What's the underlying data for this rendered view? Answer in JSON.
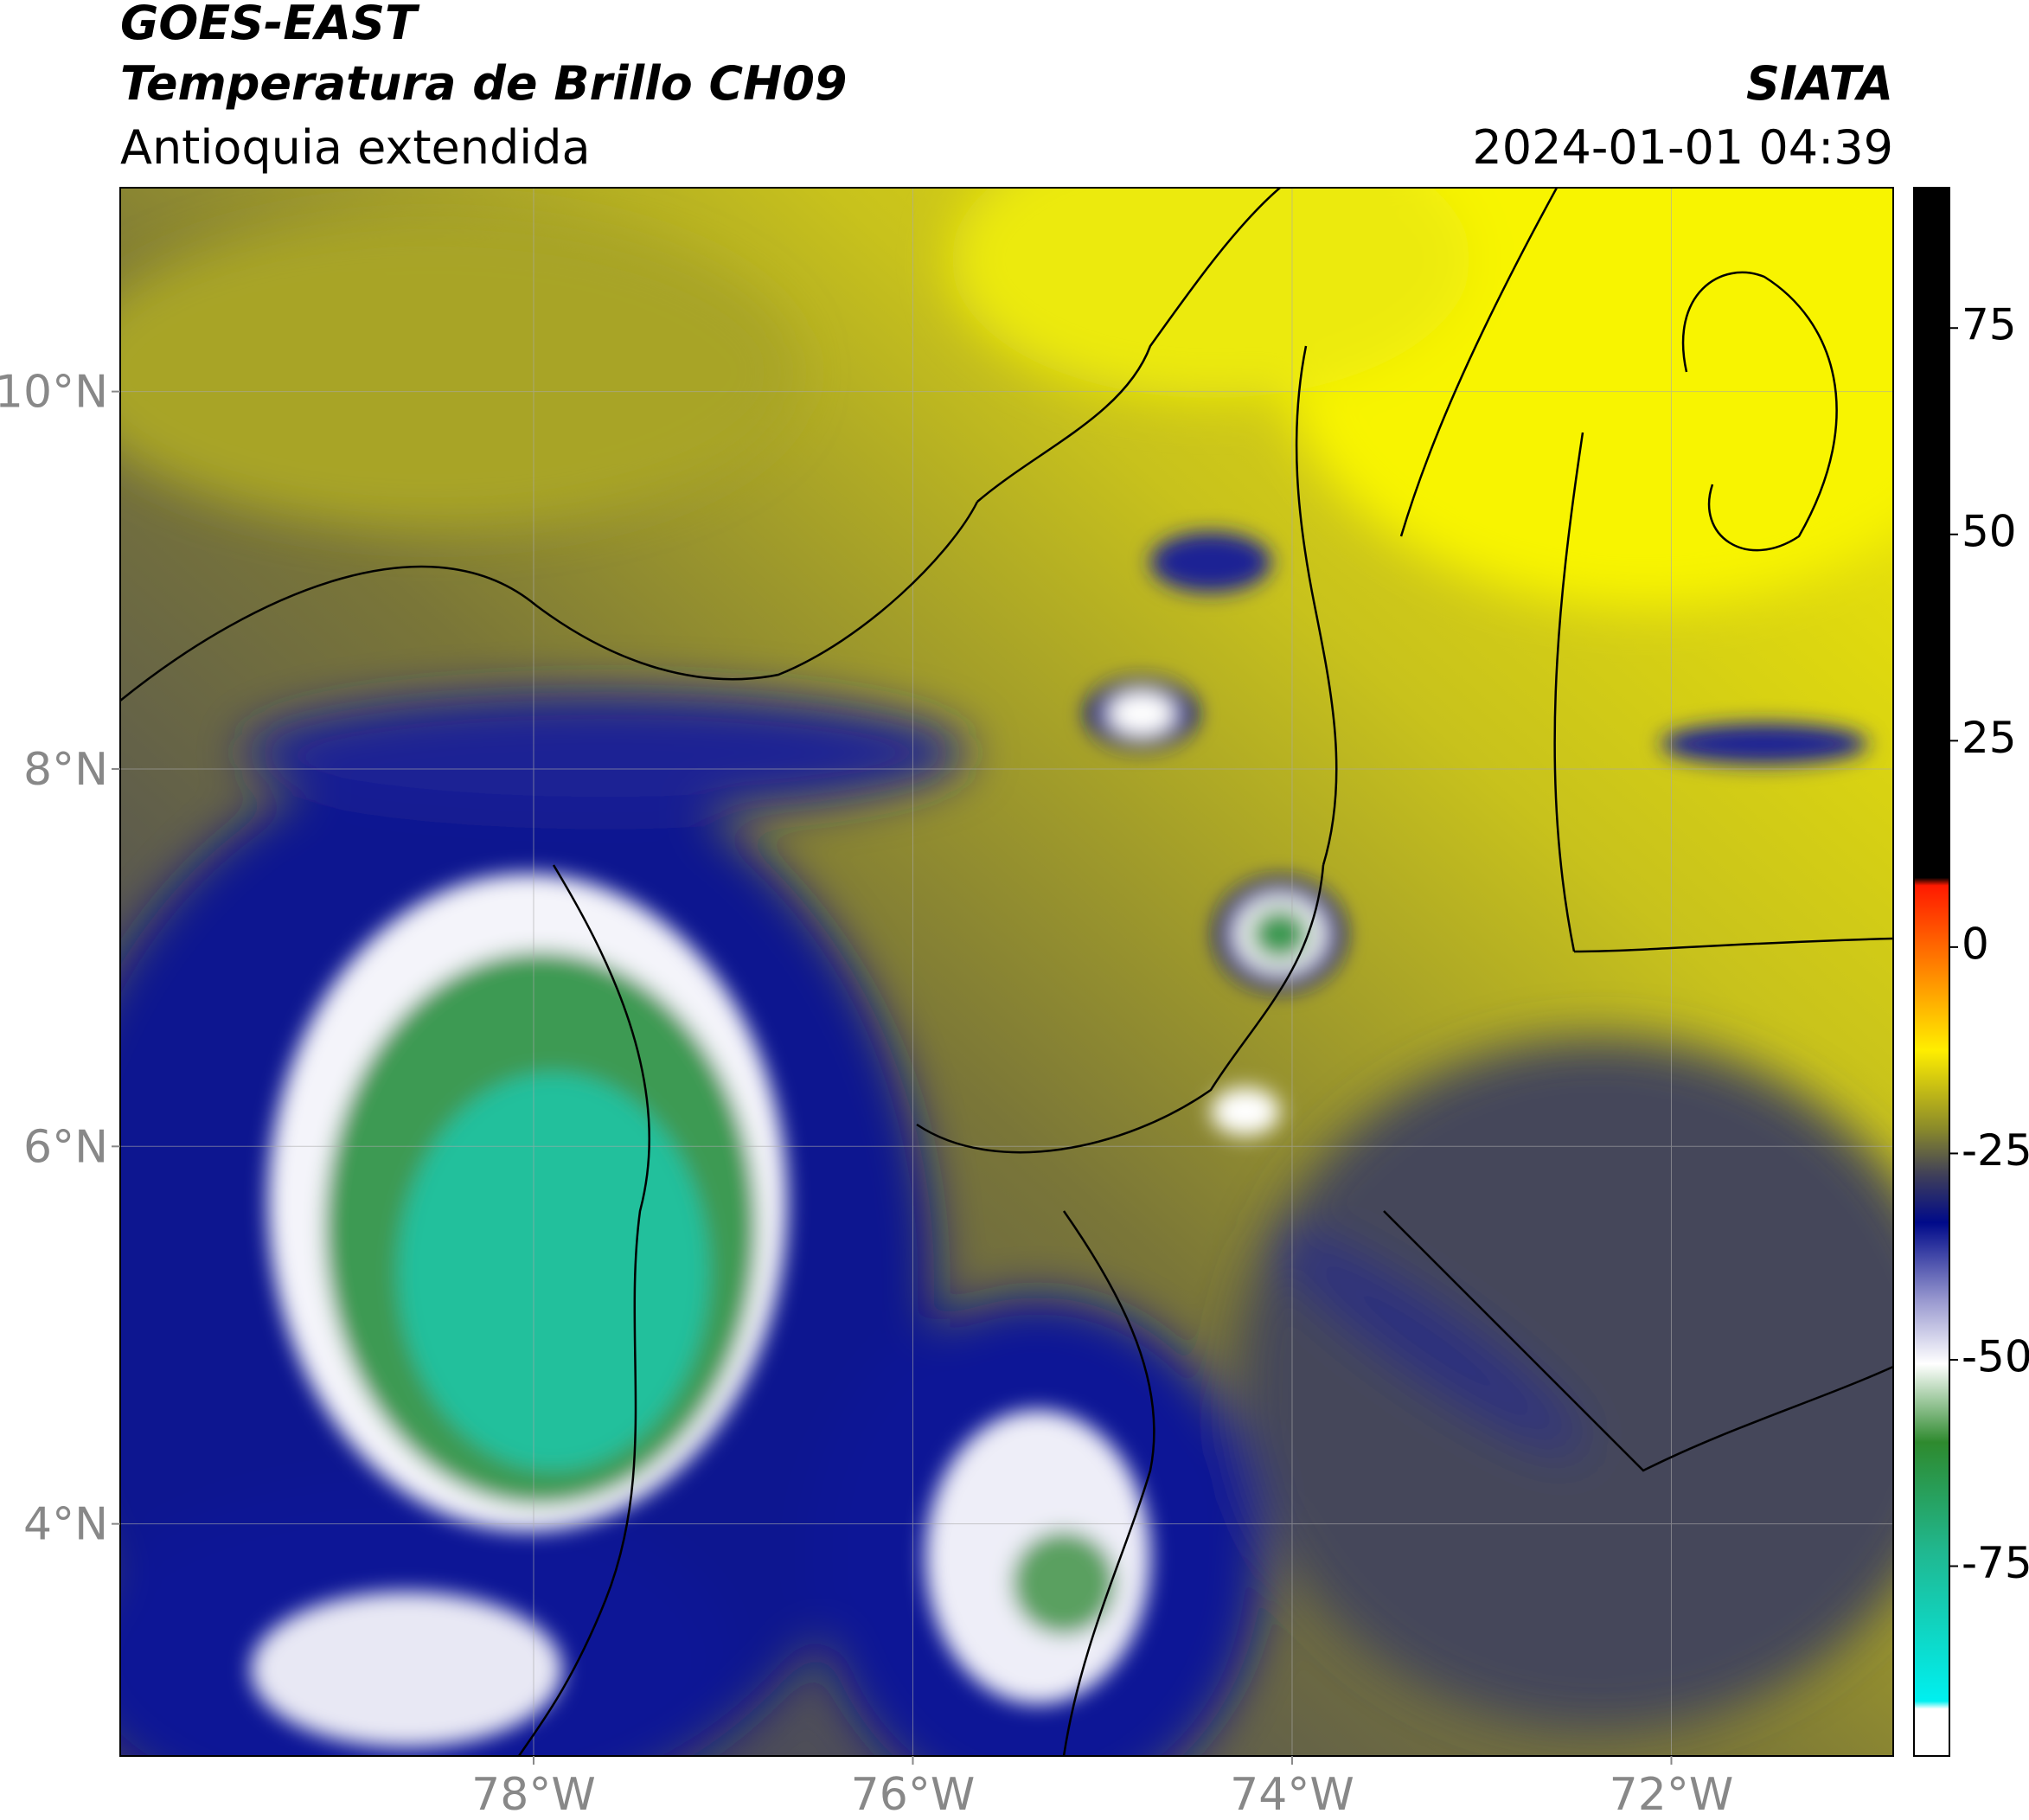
{
  "header": {
    "title": "GOES-EAST",
    "subtitle": "Temperatura de Brillo CH09",
    "region": "Antioquia extendida",
    "source": "SIATA",
    "datetime": "2024-01-01 04:39"
  },
  "map": {
    "xlim": [
      -80.18,
      -70.83
    ],
    "ylim": [
      2.77,
      11.08
    ],
    "xticks": [
      {
        "value": -78,
        "label": "78°W"
      },
      {
        "value": -76,
        "label": "76°W"
      },
      {
        "value": -74,
        "label": "74°W"
      },
      {
        "value": -72,
        "label": "72°W"
      }
    ],
    "yticks": [
      {
        "value": 10,
        "label": "10°N"
      },
      {
        "value": 8,
        "label": "8°N"
      },
      {
        "value": 6,
        "label": "6°N"
      },
      {
        "value": 4,
        "label": "4°N"
      }
    ]
  },
  "colorbar": {
    "lim": [
      -98,
      92
    ],
    "ticks": [
      75,
      50,
      25,
      0,
      -25,
      -50,
      -75
    ]
  }
}
